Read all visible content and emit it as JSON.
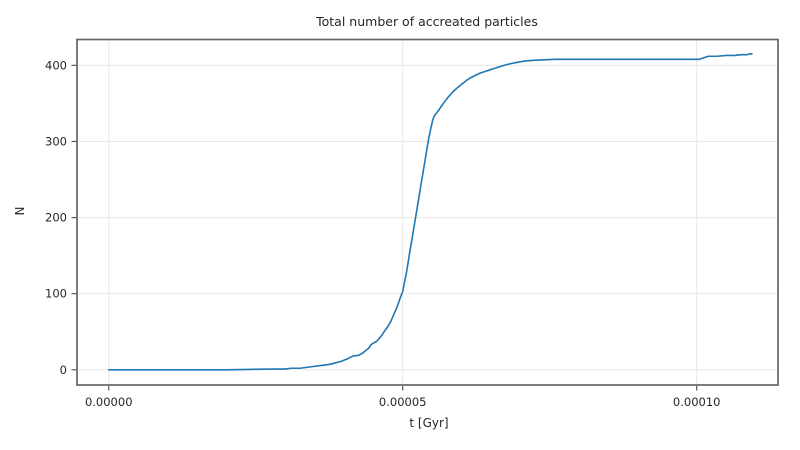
{
  "chart_data": {
    "type": "line",
    "title": "Total number of accreated particles",
    "xlabel": "t [Gyr]",
    "ylabel": "N",
    "grid": true,
    "legend": "none",
    "xlim": [
      -5.4e-06,
      0.00011383
    ],
    "ylim": [
      -20,
      434
    ],
    "x_ticks": [
      0.0,
      5e-05,
      0.0001
    ],
    "x_tick_labels": [
      "0.00000",
      "0.00005",
      "0.00010"
    ],
    "y_ticks": [
      0,
      100,
      200,
      300,
      400
    ],
    "y_tick_labels": [
      "0",
      "100",
      "200",
      "300",
      "400"
    ],
    "colors": {
      "line": "#1f77b4",
      "grid": "#e7e7e7",
      "spine": "#666666",
      "tick": "#555555",
      "text": "#262626",
      "background": "#ffffff"
    },
    "series": [
      {
        "name": "total accreted particles",
        "points": [
          [
            0,
            0
          ],
          [
            1e-05,
            0
          ],
          [
            2e-05,
            0
          ],
          [
            2.8e-05,
            1
          ],
          [
            3e-05,
            1
          ],
          [
            3.1e-05,
            2
          ],
          [
            3.25e-05,
            2
          ],
          [
            3.35e-05,
            3
          ],
          [
            3.45e-05,
            4
          ],
          [
            3.55e-05,
            5
          ],
          [
            3.65e-05,
            6
          ],
          [
            3.75e-05,
            7
          ],
          [
            3.85e-05,
            9
          ],
          [
            3.95e-05,
            11
          ],
          [
            4.05e-05,
            14
          ],
          [
            4.1e-05,
            16
          ],
          [
            4.15e-05,
            18
          ],
          [
            4.25e-05,
            19
          ],
          [
            4.32e-05,
            22
          ],
          [
            4.38e-05,
            26
          ],
          [
            4.42e-05,
            28
          ],
          [
            4.46e-05,
            33
          ],
          [
            4.5e-05,
            35
          ],
          [
            4.55e-05,
            37
          ],
          [
            4.6e-05,
            41
          ],
          [
            4.65e-05,
            46
          ],
          [
            4.7e-05,
            52
          ],
          [
            4.75e-05,
            57
          ],
          [
            4.8e-05,
            64
          ],
          [
            4.85e-05,
            73
          ],
          [
            4.9e-05,
            82
          ],
          [
            4.93e-05,
            88
          ],
          [
            4.96e-05,
            95
          ],
          [
            5e-05,
            103
          ],
          [
            5.03e-05,
            115
          ],
          [
            5.06e-05,
            126
          ],
          [
            5.09e-05,
            140
          ],
          [
            5.12e-05,
            155
          ],
          [
            5.15e-05,
            168
          ],
          [
            5.18e-05,
            182
          ],
          [
            5.21e-05,
            196
          ],
          [
            5.24e-05,
            210
          ],
          [
            5.27e-05,
            224
          ],
          [
            5.3e-05,
            238
          ],
          [
            5.33e-05,
            252
          ],
          [
            5.36e-05,
            266
          ],
          [
            5.39e-05,
            280
          ],
          [
            5.42e-05,
            294
          ],
          [
            5.45e-05,
            307
          ],
          [
            5.48e-05,
            318
          ],
          [
            5.51e-05,
            328
          ],
          [
            5.54e-05,
            334
          ],
          [
            5.58e-05,
            338
          ],
          [
            5.62e-05,
            342
          ],
          [
            5.69e-05,
            350
          ],
          [
            5.77e-05,
            358
          ],
          [
            5.85e-05,
            365
          ],
          [
            5.92e-05,
            370
          ],
          [
            6e-05,
            375
          ],
          [
            6.08e-05,
            380
          ],
          [
            6.16e-05,
            384
          ],
          [
            6.24e-05,
            387
          ],
          [
            6.32e-05,
            390
          ],
          [
            6.4e-05,
            392
          ],
          [
            6.48e-05,
            394
          ],
          [
            6.56e-05,
            396
          ],
          [
            6.64e-05,
            398
          ],
          [
            6.72e-05,
            400
          ],
          [
            6.82e-05,
            402
          ],
          [
            6.95e-05,
            404
          ],
          [
            7.1e-05,
            406
          ],
          [
            7.3e-05,
            407
          ],
          [
            7.6e-05,
            408
          ],
          [
            8e-05,
            408
          ],
          [
            8.5e-05,
            408
          ],
          [
            9e-05,
            408
          ],
          [
            9.5e-05,
            408
          ],
          [
            0.0001,
            408
          ],
          [
            0.0001005,
            408
          ],
          [
            0.0001008,
            409
          ],
          [
            0.0001012,
            410
          ],
          [
            0.0001016,
            411
          ],
          [
            0.000102,
            412
          ],
          [
            0.0001035,
            412
          ],
          [
            0.000105,
            413
          ],
          [
            0.0001065,
            413
          ],
          [
            0.0001075,
            414
          ],
          [
            0.0001085,
            414
          ],
          [
            0.000109,
            415
          ],
          [
            0.0001094,
            415
          ]
        ]
      }
    ]
  }
}
